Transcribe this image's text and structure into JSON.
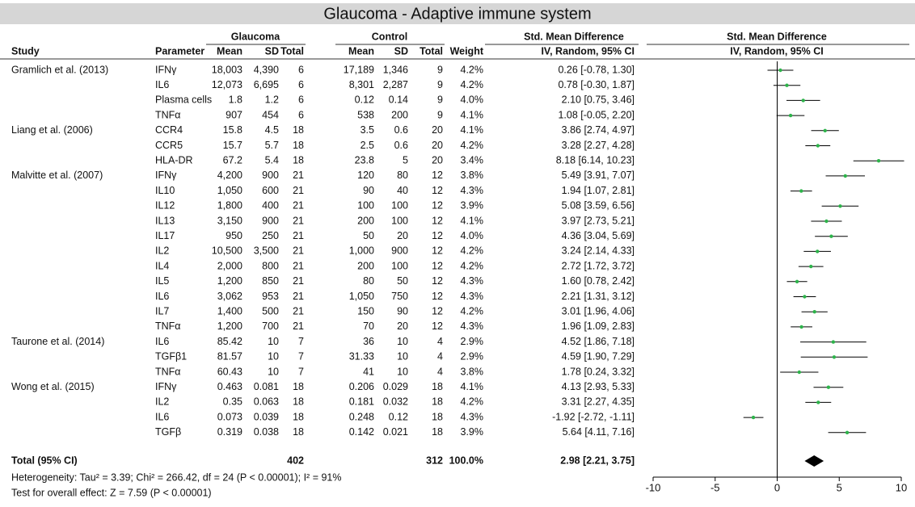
{
  "title": "Glaucoma - Adaptive immune system",
  "table": {
    "groups": [
      "Glaucoma",
      "Control",
      "Std. Mean Difference"
    ],
    "columns": [
      "Study",
      "Parameter",
      "Mean",
      "SD",
      "Total",
      "Mean",
      "SD",
      "Total",
      "Weight",
      "IV, Random, 95% CI"
    ],
    "studies": [
      {
        "name": "Gramlich et al. (2013)",
        "rows": [
          [
            "IFNγ",
            "18,003",
            "4,390",
            "6",
            "17,189",
            "1,346",
            "9",
            "4.2%"
          ],
          [
            "IL6",
            "12,073",
            "6,695",
            "6",
            "8,301",
            "2,287",
            "9",
            "4.2%"
          ],
          [
            "Plasma cells",
            "1.8",
            "1.2",
            "6",
            "0.12",
            "0.14",
            "9",
            "4.0%"
          ],
          [
            "TNFα",
            "907",
            "454",
            "6",
            "538",
            "200",
            "9",
            "4.1%"
          ]
        ]
      },
      {
        "name": "Liang et al. (2006)",
        "rows": [
          [
            "CCR4",
            "15.8",
            "4.5",
            "18",
            "3.5",
            "0.6",
            "20",
            "4.1%"
          ],
          [
            "CCR5",
            "15.7",
            "5.7",
            "18",
            "2.5",
            "0.6",
            "20",
            "4.2%"
          ],
          [
            "HLA-DR",
            "67.2",
            "5.4",
            "18",
            "23.8",
            "5",
            "20",
            "3.4%"
          ]
        ]
      },
      {
        "name": "Malvitte et al. (2007)",
        "rows": [
          [
            "IFNγ",
            "4,200",
            "900",
            "21",
            "120",
            "80",
            "12",
            "3.8%"
          ],
          [
            "IL10",
            "1,050",
            "600",
            "21",
            "90",
            "40",
            "12",
            "4.3%"
          ],
          [
            "IL12",
            "1,800",
            "400",
            "21",
            "100",
            "100",
            "12",
            "3.9%"
          ],
          [
            "IL13",
            "3,150",
            "900",
            "21",
            "200",
            "100",
            "12",
            "4.1%"
          ],
          [
            "IL17",
            "950",
            "250",
            "21",
            "50",
            "20",
            "12",
            "4.0%"
          ],
          [
            "IL2",
            "10,500",
            "3,500",
            "21",
            "1,000",
            "900",
            "12",
            "4.2%"
          ],
          [
            "IL4",
            "2,000",
            "800",
            "21",
            "200",
            "100",
            "12",
            "4.2%"
          ],
          [
            "IL5",
            "1,200",
            "850",
            "21",
            "80",
            "50",
            "12",
            "4.3%"
          ],
          [
            "IL6",
            "3,062",
            "953",
            "21",
            "1,050",
            "750",
            "12",
            "4.3%"
          ],
          [
            "IL7",
            "1,400",
            "500",
            "21",
            "150",
            "90",
            "12",
            "4.2%"
          ],
          [
            "TNFα",
            "1,200",
            "700",
            "21",
            "70",
            "20",
            "12",
            "4.3%"
          ]
        ]
      },
      {
        "name": "Taurone et al. (2014)",
        "rows": [
          [
            "IL6",
            "85.42",
            "10",
            "7",
            "36",
            "10",
            "4",
            "2.9%"
          ],
          [
            "TGFβ1",
            "81.57",
            "10",
            "7",
            "31.33",
            "10",
            "4",
            "2.9%"
          ],
          [
            "TNFα",
            "60.43",
            "10",
            "7",
            "41",
            "10",
            "4",
            "3.8%"
          ]
        ]
      },
      {
        "name": "Wong et al. (2015)",
        "rows": [
          [
            "IFNγ",
            "0.463",
            "0.081",
            "18",
            "0.206",
            "0.029",
            "18",
            "4.1%"
          ],
          [
            "IL2",
            "0.35",
            "0.063",
            "18",
            "0.181",
            "0.032",
            "18",
            "4.2%"
          ],
          [
            "IL6",
            "0.073",
            "0.039",
            "18",
            "0.248",
            "0.12",
            "18",
            "4.3%"
          ],
          [
            "TGFβ",
            "0.319",
            "0.038",
            "18",
            "0.142",
            "0.021",
            "18",
            "3.9%"
          ]
        ]
      }
    ],
    "total": {
      "name": "Total (95% CI)",
      "glaucoma_total": "402",
      "control_total": "312",
      "weight": "100.0%"
    }
  },
  "footer": [
    "Heterogeneity: Tau² = 3.39; Chi² = 266.42, df = 24 (P < 0.00001); I² = 91%",
    "Test for overall effect: Z = 7.59 (P < 0.00001)"
  ],
  "chart_data": {
    "type": "forest",
    "title": "Std. Mean Difference",
    "subtitle": "IV, Random, 95% CI",
    "values": [
      0.26,
      0.78,
      2.1,
      1.08,
      3.86,
      3.28,
      8.18,
      5.49,
      1.94,
      5.08,
      3.97,
      4.36,
      3.24,
      2.72,
      1.6,
      2.21,
      3.01,
      1.96,
      4.52,
      4.59,
      1.78,
      4.13,
      3.31,
      -1.92,
      5.64
    ],
    "lower": [
      -0.78,
      -0.3,
      0.75,
      -0.05,
      2.74,
      2.27,
      6.14,
      3.91,
      1.07,
      3.59,
      2.73,
      3.04,
      2.14,
      1.72,
      0.78,
      1.31,
      1.96,
      1.09,
      1.86,
      1.9,
      0.24,
      2.93,
      2.27,
      -2.72,
      4.11
    ],
    "upper": [
      1.3,
      1.87,
      3.46,
      2.2,
      4.97,
      4.28,
      10.23,
      7.07,
      2.81,
      6.56,
      5.21,
      5.69,
      4.33,
      3.72,
      2.42,
      3.12,
      4.06,
      2.83,
      7.18,
      7.29,
      3.32,
      5.33,
      4.35,
      -1.11,
      7.16
    ],
    "value_labels": [
      "0.26 [-0.78, 1.30]",
      "0.78 [-0.30, 1.87]",
      "2.10 [0.75, 3.46]",
      "1.08 [-0.05, 2.20]",
      "3.86 [2.74, 4.97]",
      "3.28 [2.27, 4.28]",
      "8.18 [6.14, 10.23]",
      "5.49 [3.91, 7.07]",
      "1.94 [1.07, 2.81]",
      "5.08 [3.59, 6.56]",
      "3.97 [2.73, 5.21]",
      "4.36 [3.04, 5.69]",
      "3.24 [2.14, 4.33]",
      "2.72 [1.72, 3.72]",
      "1.60 [0.78, 2.42]",
      "2.21 [1.31, 3.12]",
      "3.01 [1.96, 4.06]",
      "1.96 [1.09, 2.83]",
      "4.52 [1.86, 7.18]",
      "4.59 [1.90, 7.29]",
      "1.78 [0.24, 3.32]",
      "4.13 [2.93, 5.33]",
      "3.31 [2.27, 4.35]",
      "-1.92 [-2.72, -1.11]",
      "5.64 [4.11, 7.16]"
    ],
    "total": {
      "value": 2.98,
      "lower": 2.21,
      "upper": 3.75,
      "label": "2.98 [2.21, 3.75]"
    },
    "xlim": [
      -10,
      10
    ],
    "xticks": [
      -10,
      -5,
      0,
      5,
      10
    ],
    "marker_color": "#2db34a",
    "line_color": "#000000"
  }
}
